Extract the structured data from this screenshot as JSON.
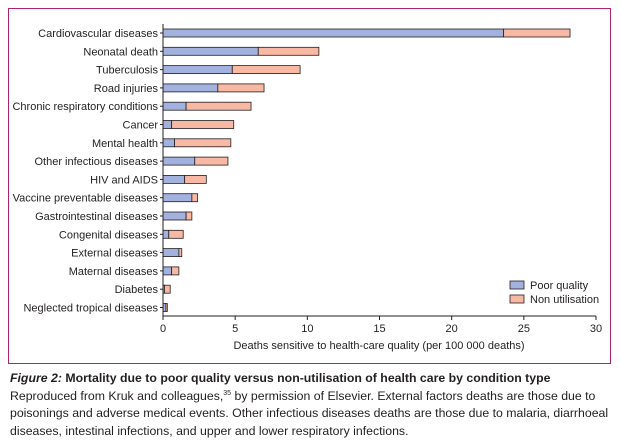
{
  "chart_data": {
    "type": "bar",
    "orientation": "horizontal",
    "stacked": true,
    "categories": [
      "Cardiovascular diseases",
      "Neonatal death",
      "Tuberculosis",
      "Road injuries",
      "Chronic respiratory conditions",
      "Cancer",
      "Mental health",
      "Other infectious diseases",
      "HIV and AIDS",
      "Vaccine preventable diseases",
      "Gastrointestinal diseases",
      "Congenital diseases",
      "External diseases",
      "Maternal diseases",
      "Diabetes",
      "Neglected tropical diseases"
    ],
    "series": [
      {
        "name": "Poor quality",
        "color": "#a3b1de",
        "values": [
          23.6,
          6.6,
          4.8,
          3.8,
          1.6,
          0.6,
          0.8,
          2.2,
          1.5,
          2.0,
          1.6,
          0.4,
          1.1,
          0.6,
          0.1,
          0.2
        ]
      },
      {
        "name": "Non utilisation",
        "color": "#f7b9a3",
        "values": [
          4.6,
          4.2,
          4.7,
          3.2,
          4.5,
          4.3,
          3.9,
          2.3,
          1.5,
          0.4,
          0.4,
          1.0,
          0.2,
          0.5,
          0.4,
          0.1
        ]
      }
    ],
    "xlabel": "Deaths sensitive to health-care quality (per 100 000 deaths)",
    "xlim": [
      0,
      30
    ],
    "xticks": [
      "0",
      "5",
      "10",
      "15",
      "20",
      "25",
      "30"
    ],
    "grid": false,
    "legend": "bottom-right"
  },
  "caption": {
    "label": "Figure 2:",
    "title": "Mortality due to poor quality versus non-utilisation of health care by condition type",
    "text_before_ref": "Reproduced from Kruk and colleagues,",
    "ref": "35",
    "text_after_ref": " by permission of Elsevier. External factors deaths are those due to poisonings and adverse medical events. Other infectious diseases deaths are those due to malaria, diarrhoeal diseases, intestinal infections, and upper and lower respiratory infections."
  }
}
